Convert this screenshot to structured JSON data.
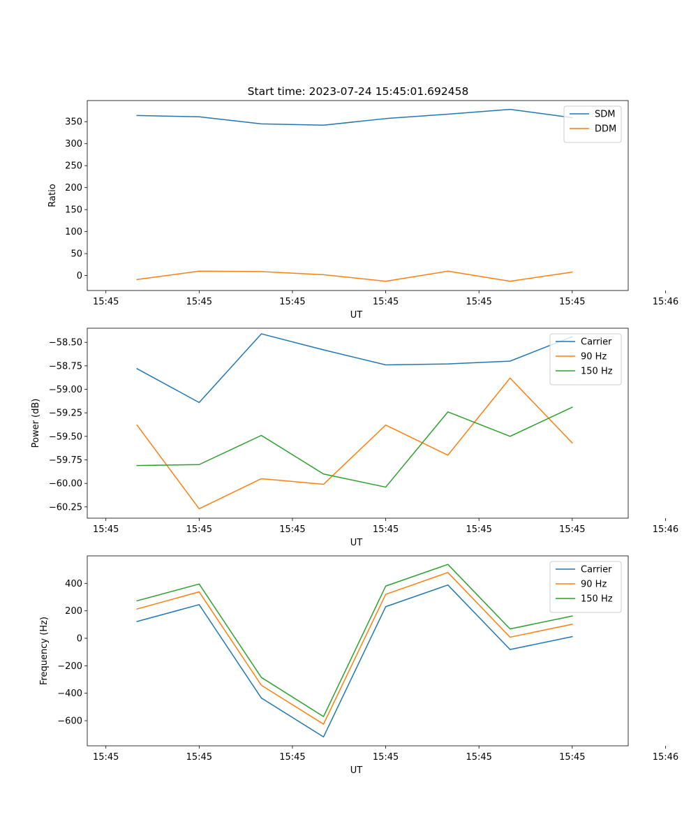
{
  "figure": {
    "title": "Start time: 2023-07-24 15:45:01.692458"
  },
  "chart_data": [
    {
      "type": "line",
      "xlabel": "UT",
      "ylabel": "Ratio",
      "x": [
        1,
        2,
        3,
        4,
        5,
        6,
        7,
        8
      ],
      "xlim": [
        0.2,
        8.9
      ],
      "xticks": [
        0.5,
        2,
        3.5,
        5,
        6.5,
        8,
        9.5
      ],
      "xtick_labels": [
        "15:45",
        "15:45",
        "15:45",
        "15:45",
        "15:45",
        "15:45",
        "15:46"
      ],
      "ylim": [
        -34,
        398
      ],
      "yticks": [
        0,
        50,
        100,
        150,
        200,
        250,
        300,
        350
      ],
      "ytick_labels": [
        "0",
        "50",
        "100",
        "150",
        "200",
        "250",
        "300",
        "350"
      ],
      "legend_position": "upper right",
      "series": [
        {
          "name": "SDM",
          "color": "#1f77b4",
          "values": [
            364,
            361,
            345,
            342,
            357,
            367,
            378,
            359
          ]
        },
        {
          "name": "DDM",
          "color": "#ff7f0e",
          "values": [
            -9,
            10,
            9,
            2,
            -13,
            10,
            -13,
            8
          ]
        }
      ]
    },
    {
      "type": "line",
      "xlabel": "UT",
      "ylabel": "Power (dB)",
      "x": [
        1,
        2,
        3,
        4,
        5,
        6,
        7,
        8
      ],
      "xlim": [
        0.2,
        8.9
      ],
      "xticks": [
        0.5,
        2,
        3.5,
        5,
        6.5,
        8,
        9.5
      ],
      "xtick_labels": [
        "15:45",
        "15:45",
        "15:45",
        "15:45",
        "15:45",
        "15:45",
        "15:46"
      ],
      "ylim": [
        -60.37,
        -58.35
      ],
      "yticks": [
        -60.25,
        -60.0,
        -59.75,
        -59.5,
        -59.25,
        -59.0,
        -58.75,
        -58.5
      ],
      "ytick_labels": [
        "−60.25",
        "−60.00",
        "−59.75",
        "−59.50",
        "−59.25",
        "−59.00",
        "−58.75",
        "−58.50"
      ],
      "legend_position": "upper right",
      "series": [
        {
          "name": "Carrier",
          "color": "#1f77b4",
          "values": [
            -58.78,
            -59.14,
            -58.41,
            -58.58,
            -58.74,
            -58.73,
            -58.7,
            -58.44
          ]
        },
        {
          "name": "90 Hz",
          "color": "#ff7f0e",
          "values": [
            -59.38,
            -60.27,
            -59.95,
            -60.01,
            -59.38,
            -59.7,
            -58.88,
            -59.57
          ]
        },
        {
          "name": "150 Hz",
          "color": "#2ca02c",
          "values": [
            -59.81,
            -59.8,
            -59.49,
            -59.9,
            -60.04,
            -59.24,
            -59.5,
            -59.19
          ]
        }
      ]
    },
    {
      "type": "line",
      "xlabel": "UT",
      "ylabel": "Frequency (Hz)",
      "x": [
        1,
        2,
        3,
        4,
        5,
        6,
        7,
        8
      ],
      "xlim": [
        0.2,
        8.9
      ],
      "xticks": [
        0.5,
        2,
        3.5,
        5,
        6.5,
        8,
        9.5
      ],
      "xtick_labels": [
        "15:45",
        "15:45",
        "15:45",
        "15:45",
        "15:45",
        "15:45",
        "15:46"
      ],
      "ylim": [
        -783,
        600
      ],
      "yticks": [
        -600,
        -400,
        -200,
        0,
        200,
        400
      ],
      "ytick_labels": [
        "−600",
        "−400",
        "−200",
        "0",
        "200",
        "400"
      ],
      "legend_position": "upper right",
      "series": [
        {
          "name": "Carrier",
          "color": "#1f77b4",
          "values": [
            122,
            245,
            -435,
            -718,
            230,
            388,
            -82,
            12
          ]
        },
        {
          "name": "90 Hz",
          "color": "#ff7f0e",
          "values": [
            213,
            338,
            -342,
            -625,
            320,
            479,
            8,
            102
          ]
        },
        {
          "name": "150 Hz",
          "color": "#2ca02c",
          "values": [
            273,
            395,
            -285,
            -570,
            380,
            538,
            68,
            162
          ]
        }
      ]
    }
  ]
}
